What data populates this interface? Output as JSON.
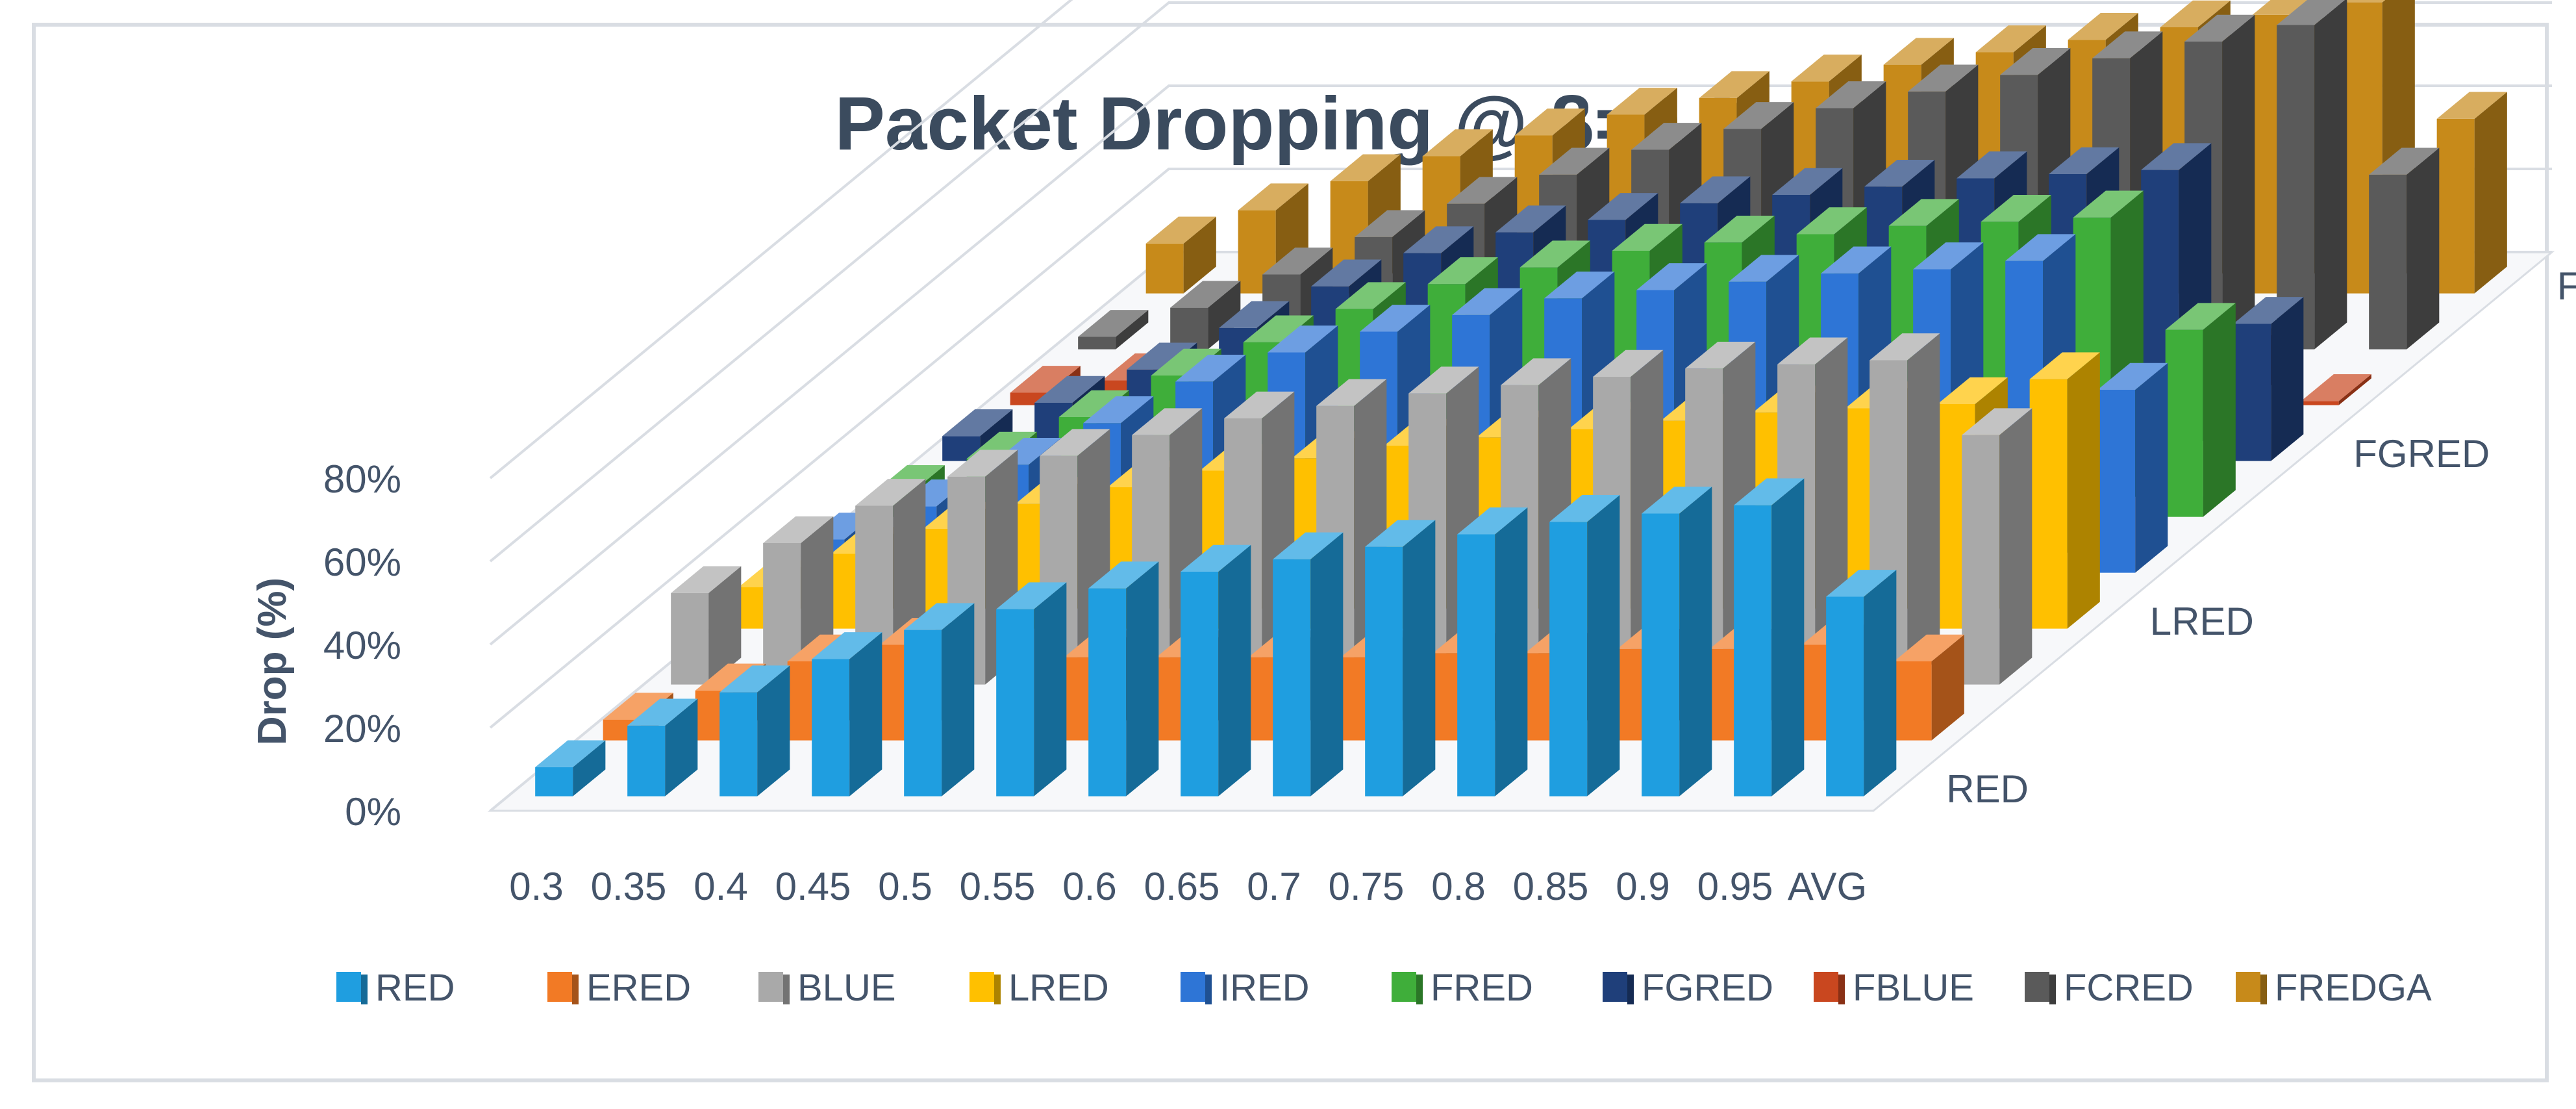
{
  "chart_data": {
    "type": "bar3d",
    "title": "Packet Dropping @ β=0.3",
    "xlabel": "",
    "ylabel": "Drop (%)",
    "ylim": [
      0,
      80
    ],
    "y_ticks": [
      "0%",
      "20%",
      "40%",
      "60%",
      "80%"
    ],
    "categories": [
      "0.3",
      "0.35",
      "0.4",
      "0.45",
      "0.5",
      "0.55",
      "0.6",
      "0.65",
      "0.7",
      "0.75",
      "0.8",
      "0.85",
      "0.9",
      "0.95",
      "AVG"
    ],
    "depth_labels": [
      "RED",
      "LRED",
      "FGRED",
      "FREDGA"
    ],
    "legend": [
      "RED",
      "ERED",
      "BLUE",
      "LRED",
      "IRED",
      "FRED",
      "FGRED",
      "FBLUE",
      "FCRED",
      "FREDGA"
    ],
    "series": [
      {
        "name": "RED",
        "color": "#1f9ee0",
        "values": [
          7,
          17,
          25,
          33,
          40,
          45,
          50,
          54,
          57,
          60,
          63,
          66,
          68,
          70,
          48
        ]
      },
      {
        "name": "ERED",
        "color": "#f27a25",
        "values": [
          5,
          12,
          19,
          23,
          0,
          20,
          20,
          20,
          20,
          21,
          21,
          22,
          22,
          23,
          19
        ]
      },
      {
        "name": "BLUE",
        "color": "#a9a9a9",
        "values": [
          22,
          34,
          43,
          50,
          55,
          60,
          64,
          67,
          70,
          72,
          74,
          76,
          77,
          78,
          60
        ]
      },
      {
        "name": "LRED",
        "color": "#ffc000",
        "values": [
          10,
          18,
          24,
          30,
          34,
          38,
          41,
          44,
          46,
          48,
          50,
          52,
          53,
          54,
          60
        ]
      },
      {
        "name": "IRED",
        "color": "#2e75d6",
        "values": [
          8,
          16,
          26,
          36,
          46,
          53,
          58,
          62,
          66,
          68,
          70,
          72,
          73,
          75,
          44
        ]
      },
      {
        "name": "FRED",
        "color": "#3fae3a",
        "values": [
          6,
          14,
          24,
          34,
          42,
          50,
          56,
          60,
          64,
          66,
          68,
          70,
          71,
          72,
          45
        ]
      },
      {
        "name": "FGRED",
        "color": "#1f3f7a",
        "values": [
          6,
          14,
          22,
          32,
          42,
          50,
          55,
          58,
          62,
          64,
          66,
          68,
          69,
          70,
          33
        ]
      },
      {
        "name": "FBLUE",
        "color": "#c9471f",
        "values": [
          3,
          6,
          8,
          9,
          10,
          10,
          11,
          11,
          11,
          12,
          12,
          12,
          12,
          12,
          1
        ]
      },
      {
        "name": "FCRED",
        "color": "#5a5a5a",
        "values": [
          3,
          10,
          18,
          27,
          35,
          42,
          48,
          53,
          58,
          62,
          66,
          70,
          74,
          78,
          42
        ]
      },
      {
        "name": "FREDGA",
        "color": "#c78a1a",
        "values": [
          12,
          20,
          27,
          33,
          38,
          43,
          47,
          51,
          55,
          58,
          61,
          64,
          67,
          70,
          42
        ]
      }
    ]
  }
}
